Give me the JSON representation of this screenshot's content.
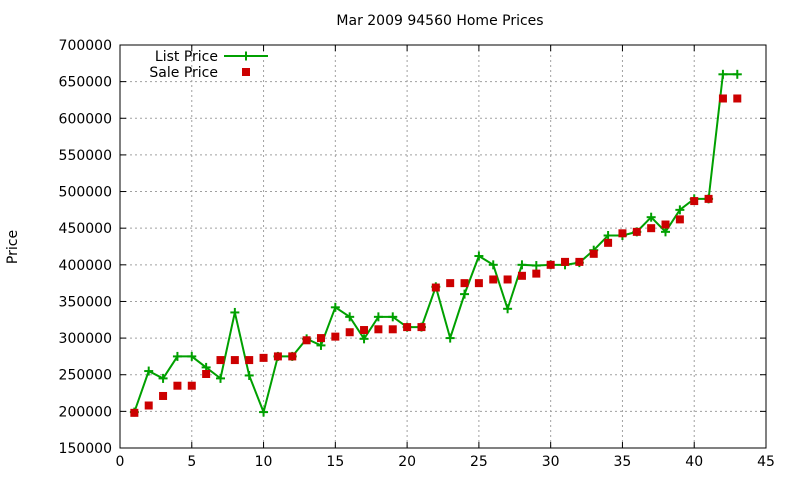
{
  "chart_data": {
    "type": "line",
    "title": "Mar 2009 94560 Home Prices",
    "xlabel": "",
    "ylabel": "Price",
    "xlim": [
      0,
      45
    ],
    "ylim": [
      150000,
      700000
    ],
    "xticks": [
      0,
      5,
      10,
      15,
      20,
      25,
      30,
      35,
      40,
      45
    ],
    "yticks": [
      150000,
      200000,
      250000,
      300000,
      350000,
      400000,
      450000,
      500000,
      550000,
      600000,
      650000,
      700000
    ],
    "grid": true,
    "legend_position": "top-left",
    "series": [
      {
        "name": "List Price",
        "style": "line-plus",
        "color": "#00a000",
        "x": [
          1,
          2,
          3,
          4,
          5,
          6,
          7,
          8,
          9,
          10,
          11,
          12,
          13,
          14,
          15,
          16,
          17,
          18,
          19,
          20,
          21,
          22,
          23,
          24,
          25,
          26,
          27,
          28,
          29,
          30,
          31,
          32,
          33,
          34,
          35,
          36,
          37,
          38,
          39,
          40,
          41,
          42,
          43
        ],
        "values": [
          199000,
          255000,
          245000,
          275000,
          275000,
          260000,
          245000,
          335000,
          249000,
          199000,
          275000,
          275000,
          299000,
          290000,
          342000,
          329000,
          299000,
          329000,
          329000,
          315000,
          315000,
          370000,
          300000,
          360000,
          412000,
          400000,
          340000,
          400000,
          399000,
          400000,
          400000,
          403000,
          420000,
          440000,
          440000,
          445000,
          465000,
          445000,
          475000,
          490000,
          490000,
          660000,
          660000
        ]
      },
      {
        "name": "Sale Price",
        "style": "square-points",
        "color": "#cc0000",
        "x": [
          1,
          2,
          3,
          4,
          5,
          6,
          7,
          8,
          9,
          10,
          11,
          12,
          13,
          14,
          15,
          16,
          17,
          18,
          19,
          20,
          21,
          22,
          23,
          24,
          25,
          26,
          27,
          28,
          29,
          30,
          31,
          32,
          33,
          34,
          35,
          36,
          37,
          38,
          39,
          40,
          41,
          42,
          43
        ],
        "values": [
          198000,
          208000,
          221000,
          235000,
          235000,
          251000,
          270000,
          270000,
          270000,
          273000,
          275000,
          275000,
          297000,
          300000,
          302000,
          308000,
          311000,
          312000,
          312000,
          315000,
          315000,
          369000,
          375000,
          375000,
          375000,
          380000,
          380000,
          385000,
          388000,
          400000,
          404000,
          404000,
          415000,
          430000,
          443000,
          445000,
          450000,
          455000,
          462000,
          487000,
          490000,
          627000,
          627000
        ]
      }
    ]
  }
}
